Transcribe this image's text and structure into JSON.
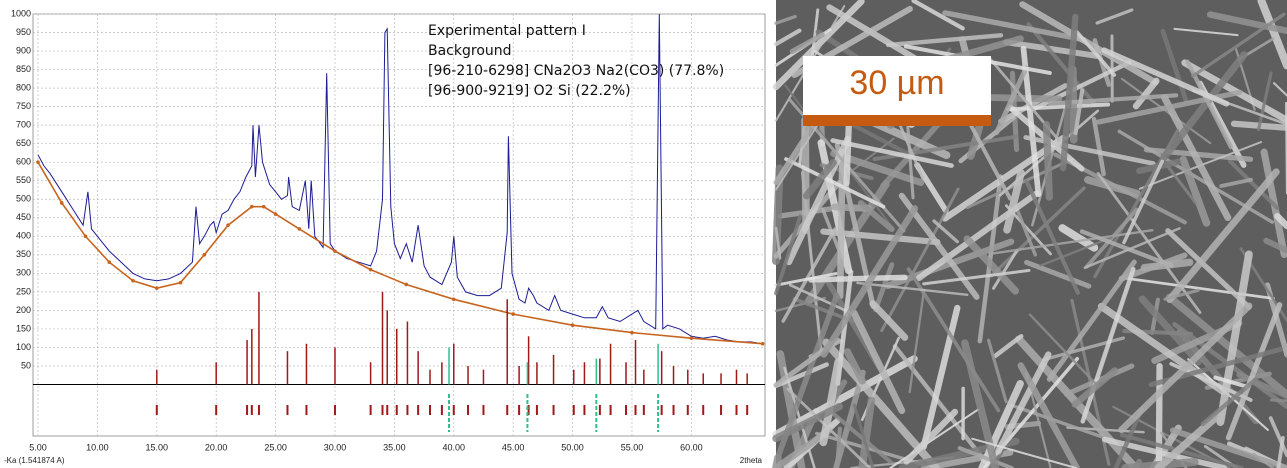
{
  "chart_data": {
    "type": "line",
    "legend": [
      "Experimental pattern I",
      "Background",
      "[96-210-6298] CNa2O3 Na2(CO3) (77.8%)",
      "[96-900-9219] O2 Si (22.2%)"
    ],
    "xlabel": "2theta",
    "wavelength_label": "-Ka (1.541874 A)",
    "xlim": [
      5,
      66.2
    ],
    "ylim": [
      0,
      1000
    ],
    "grid": true,
    "xticks": [
      {
        "value": 5,
        "label": "5.00"
      },
      {
        "value": 10,
        "label": "10.00"
      },
      {
        "value": 15,
        "label": "15.00"
      },
      {
        "value": 20,
        "label": "20.00"
      },
      {
        "value": 25,
        "label": "25.00"
      },
      {
        "value": 30,
        "label": "30.00"
      },
      {
        "value": 35,
        "label": "35.00"
      },
      {
        "value": 40,
        "label": "40.00"
      },
      {
        "value": 45,
        "label": "45.00"
      },
      {
        "value": 50,
        "label": "50.00"
      },
      {
        "value": 55,
        "label": "55.00"
      },
      {
        "value": 60,
        "label": "60.00"
      }
    ],
    "yticks": [
      50,
      100,
      150,
      200,
      250,
      300,
      350,
      400,
      450,
      500,
      550,
      600,
      650,
      700,
      750,
      800,
      850,
      900,
      950,
      1000
    ],
    "series": [
      {
        "name": "Experimental pattern I",
        "color": "#1c1c96",
        "x": [
          5,
          5.5,
          6,
          7,
          8,
          8.8,
          9.2,
          9.5,
          10,
          11,
          12,
          13,
          14,
          15,
          16,
          17,
          18,
          18.3,
          18.6,
          19,
          19.5,
          19.8,
          20,
          20.5,
          21,
          21.5,
          22,
          22.5,
          23,
          23.1,
          23.3,
          23.6,
          23.9,
          24.5,
          25,
          25.5,
          26,
          26.1,
          26.4,
          27,
          27.5,
          27.8,
          28,
          28.3,
          29,
          29.3,
          29.6,
          30,
          31,
          32,
          33,
          33.5,
          34,
          34.2,
          34.4,
          34.7,
          35,
          35.5,
          36,
          36.5,
          37,
          37.5,
          38,
          39,
          39.8,
          40,
          40.3,
          41,
          42,
          43,
          44,
          44.5,
          44.6,
          44.9,
          45.5,
          46,
          46.3,
          46.7,
          47,
          48,
          48.5,
          49,
          50,
          51,
          52,
          52.5,
          53,
          54,
          55,
          55.5,
          56,
          57,
          57.3,
          57.6,
          58,
          59,
          60,
          61,
          62,
          63,
          64,
          65,
          66
        ],
        "values": [
          620,
          590,
          570,
          520,
          470,
          430,
          520,
          420,
          400,
          360,
          330,
          300,
          285,
          280,
          285,
          300,
          330,
          480,
          380,
          400,
          430,
          440,
          410,
          460,
          470,
          500,
          520,
          560,
          590,
          700,
          560,
          700,
          600,
          540,
          520,
          500,
          510,
          560,
          480,
          470,
          550,
          420,
          550,
          400,
          370,
          840,
          380,
          360,
          340,
          330,
          320,
          360,
          500,
          950,
          960,
          480,
          380,
          340,
          380,
          330,
          430,
          320,
          290,
          270,
          330,
          400,
          290,
          250,
          240,
          240,
          260,
          410,
          670,
          300,
          230,
          220,
          260,
          240,
          220,
          200,
          240,
          200,
          190,
          180,
          180,
          210,
          180,
          170,
          190,
          200,
          170,
          150,
          1000,
          150,
          160,
          150,
          130,
          125,
          130,
          120,
          115,
          115,
          110
        ]
      },
      {
        "name": "Background",
        "color": "#c8641e",
        "x": [
          5,
          7,
          9,
          11,
          13,
          15,
          17,
          19,
          21,
          23,
          24,
          25,
          27,
          30,
          33,
          36,
          40,
          45,
          50,
          55,
          60,
          66
        ],
        "values": [
          600,
          490,
          400,
          330,
          280,
          260,
          275,
          350,
          430,
          480,
          480,
          460,
          420,
          360,
          310,
          270,
          230,
          190,
          160,
          140,
          125,
          110
        ]
      },
      {
        "name": "[96-210-6298] CNa2O3 Na2(CO3) (77.8%)",
        "color": "#a01818",
        "x": [
          15,
          20,
          22.6,
          23,
          23.6,
          26,
          27.6,
          30,
          33,
          34,
          34.4,
          35.2,
          36.1,
          37,
          38,
          39,
          40,
          41.2,
          42.5,
          44.5,
          45.5,
          46.3,
          47,
          48.4,
          50.1,
          51,
          52.3,
          53.2,
          54.5,
          55.3,
          56,
          57.5,
          58.5,
          59.7,
          61,
          62.5,
          63.8,
          64.7
        ],
        "values": [
          40,
          60,
          120,
          150,
          250,
          90,
          110,
          100,
          60,
          250,
          200,
          150,
          170,
          90,
          40,
          60,
          110,
          50,
          40,
          230,
          50,
          130,
          60,
          80,
          40,
          60,
          70,
          110,
          60,
          120,
          40,
          90,
          50,
          40,
          30,
          30,
          40,
          30
        ]
      },
      {
        "name": "[96-900-9219] O2 Si (22.2%)",
        "color": "#2fbf8f",
        "x": [
          39.6,
          46.2,
          52,
          57.2
        ],
        "values": [
          100,
          60,
          70,
          110
        ]
      }
    ]
  },
  "image": {
    "scale_label": "30 µm"
  }
}
